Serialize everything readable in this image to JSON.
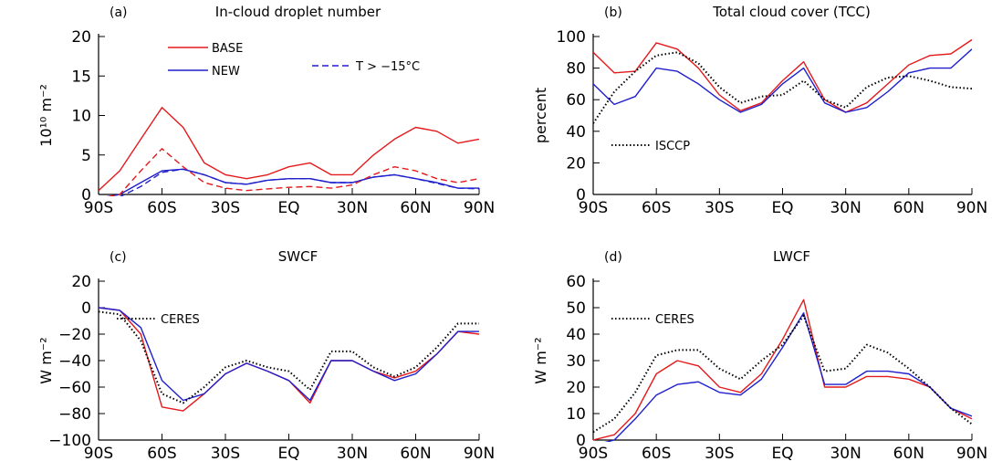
{
  "colors": {
    "base": "#e41a1c",
    "new": "#1f1fcc",
    "obs": "#000000"
  },
  "chart_data": [
    {
      "type": "line",
      "panel": "(a)",
      "title": "In-cloud droplet number",
      "ylabel": "10¹⁰ m⁻²",
      "xlabel": "",
      "ylim": [
        0,
        20
      ],
      "yticks": [
        "0",
        "5",
        "10",
        "15",
        "20"
      ],
      "yticks_values": [
        0,
        5,
        10,
        15,
        20
      ],
      "xticks": [
        "90S",
        "60S",
        "30S",
        "EQ",
        "30N",
        "60N",
        "90N"
      ],
      "legend": [
        {
          "name": "BASE",
          "style": "solid",
          "color": "#e41a1c"
        },
        {
          "name": "NEW",
          "style": "solid",
          "color": "#1f1fcc"
        },
        {
          "name": "T > −15°C",
          "style": "dashed",
          "color": "#1f1fcc"
        }
      ],
      "x": [
        -90,
        -80,
        -70,
        -60,
        -50,
        -40,
        -30,
        -20,
        -10,
        0,
        10,
        20,
        30,
        40,
        50,
        60,
        70,
        80,
        90
      ],
      "series": [
        {
          "name": "BASE",
          "color": "#e41a1c",
          "dash": "solid",
          "values": [
            0.5,
            3,
            7,
            11,
            8.5,
            4,
            2.5,
            2,
            2.5,
            3.5,
            4,
            2.5,
            2.5,
            5,
            7,
            8.5,
            8,
            6.5,
            7
          ]
        },
        {
          "name": "NEW",
          "color": "#1f1fcc",
          "dash": "solid",
          "values": [
            -0.5,
            0,
            1.5,
            3,
            3.2,
            2.5,
            1.5,
            1.3,
            1.8,
            2,
            2,
            1.5,
            1.5,
            2.2,
            2.5,
            2,
            1.5,
            0.8,
            0.8
          ]
        },
        {
          "name": "BASE T>-15C",
          "color": "#e41a1c",
          "dash": "dashed",
          "values": [
            -0.5,
            0,
            3,
            5.8,
            3.5,
            1.5,
            0.8,
            0.5,
            0.7,
            0.9,
            1,
            0.8,
            1.2,
            2.5,
            3.5,
            3,
            2,
            1.5,
            2
          ]
        },
        {
          "name": "NEW T>-15C",
          "color": "#1f1fcc",
          "dash": "dashed",
          "values": [
            -0.5,
            -0.3,
            1,
            2.8,
            3.2,
            2.5,
            1.5,
            1.3,
            1.8,
            2,
            2,
            1.5,
            1.5,
            2.2,
            2.5,
            2,
            1.4,
            0.8,
            0.7
          ]
        }
      ]
    },
    {
      "type": "line",
      "panel": "(b)",
      "title": "Total cloud cover (TCC)",
      "ylabel": "percent",
      "xlabel": "",
      "ylim": [
        0,
        100
      ],
      "yticks": [
        "0",
        "20",
        "40",
        "60",
        "80",
        "100"
      ],
      "yticks_values": [
        0,
        20,
        40,
        60,
        80,
        100
      ],
      "xticks": [
        "90S",
        "60S",
        "30S",
        "EQ",
        "30N",
        "60N",
        "90N"
      ],
      "legend": [
        {
          "name": "ISCCP",
          "style": "dotted",
          "color": "#000000"
        }
      ],
      "x": [
        -90,
        -80,
        -70,
        -60,
        -50,
        -40,
        -30,
        -20,
        -10,
        0,
        10,
        20,
        30,
        40,
        50,
        60,
        70,
        80,
        90
      ],
      "series": [
        {
          "name": "BASE",
          "color": "#e41a1c",
          "dash": "solid",
          "values": [
            90,
            77,
            78,
            96,
            92,
            80,
            63,
            53,
            58,
            72,
            84,
            60,
            52,
            58,
            70,
            82,
            88,
            89,
            98
          ]
        },
        {
          "name": "NEW",
          "color": "#1f1fcc",
          "dash": "solid",
          "values": [
            70,
            57,
            62,
            80,
            78,
            70,
            60,
            52,
            57,
            70,
            80,
            58,
            52,
            55,
            65,
            77,
            80,
            80,
            92
          ]
        },
        {
          "name": "ISCCP",
          "color": "#000000",
          "dash": "dotted",
          "values": [
            45,
            65,
            78,
            88,
            90,
            83,
            68,
            58,
            62,
            63,
            72,
            60,
            55,
            68,
            74,
            75,
            72,
            68,
            67
          ]
        }
      ]
    },
    {
      "type": "line",
      "panel": "(c)",
      "title": "SWCF",
      "ylabel": "W m⁻²",
      "xlabel": "",
      "ylim": [
        -100,
        20
      ],
      "yticks": [
        "−100",
        "−80",
        "−60",
        "−40",
        "−20",
        "0",
        "20"
      ],
      "yticks_values": [
        -100,
        -80,
        -60,
        -40,
        -20,
        0,
        20
      ],
      "xticks": [
        "90S",
        "60S",
        "30S",
        "EQ",
        "30N",
        "60N",
        "90N"
      ],
      "legend": [
        {
          "name": "CERES",
          "style": "dotted",
          "color": "#000000"
        }
      ],
      "x": [
        -90,
        -80,
        -70,
        -60,
        -50,
        -40,
        -30,
        -20,
        -10,
        0,
        10,
        20,
        30,
        40,
        50,
        60,
        70,
        80,
        90
      ],
      "series": [
        {
          "name": "BASE",
          "color": "#e41a1c",
          "dash": "solid",
          "values": [
            0,
            -2,
            -20,
            -75,
            -78,
            -65,
            -50,
            -42,
            -48,
            -55,
            -72,
            -40,
            -40,
            -48,
            -53,
            -48,
            -35,
            -18,
            -20
          ]
        },
        {
          "name": "NEW",
          "color": "#1f1fcc",
          "dash": "solid",
          "values": [
            0,
            -2,
            -15,
            -55,
            -70,
            -65,
            -50,
            -42,
            -48,
            -55,
            -70,
            -40,
            -40,
            -48,
            -55,
            -50,
            -35,
            -18,
            -18
          ]
        },
        {
          "name": "CERES",
          "color": "#000000",
          "dash": "dotted",
          "values": [
            -3,
            -5,
            -25,
            -65,
            -72,
            -60,
            -45,
            -40,
            -45,
            -48,
            -62,
            -33,
            -33,
            -45,
            -52,
            -45,
            -30,
            -12,
            -12
          ]
        }
      ]
    },
    {
      "type": "line",
      "panel": "(d)",
      "title": "LWCF",
      "ylabel": "W m⁻²",
      "xlabel": "",
      "ylim": [
        0,
        60
      ],
      "yticks": [
        "0",
        "10",
        "20",
        "30",
        "40",
        "50",
        "60"
      ],
      "yticks_values": [
        0,
        10,
        20,
        30,
        40,
        50,
        60
      ],
      "xticks": [
        "90S",
        "60S",
        "30S",
        "EQ",
        "30N",
        "60N",
        "90N"
      ],
      "legend": [
        {
          "name": "CERES",
          "style": "dotted",
          "color": "#000000"
        }
      ],
      "x": [
        -90,
        -80,
        -70,
        -60,
        -50,
        -40,
        -30,
        -20,
        -10,
        0,
        10,
        20,
        30,
        40,
        50,
        60,
        70,
        80,
        90
      ],
      "series": [
        {
          "name": "BASE",
          "color": "#e41a1c",
          "dash": "solid",
          "values": [
            0,
            2,
            10,
            25,
            30,
            28,
            20,
            18,
            25,
            38,
            53,
            20,
            20,
            24,
            24,
            23,
            20,
            12,
            8
          ]
        },
        {
          "name": "NEW",
          "color": "#1f1fcc",
          "dash": "solid",
          "values": [
            -2,
            0,
            8,
            17,
            21,
            22,
            18,
            17,
            23,
            35,
            48,
            21,
            21,
            26,
            26,
            25,
            20,
            12,
            9
          ]
        },
        {
          "name": "CERES",
          "color": "#000000",
          "dash": "dotted",
          "values": [
            3,
            8,
            18,
            32,
            34,
            34,
            27,
            23,
            30,
            36,
            47,
            26,
            27,
            36,
            33,
            27,
            20,
            12,
            6
          ]
        }
      ]
    }
  ]
}
